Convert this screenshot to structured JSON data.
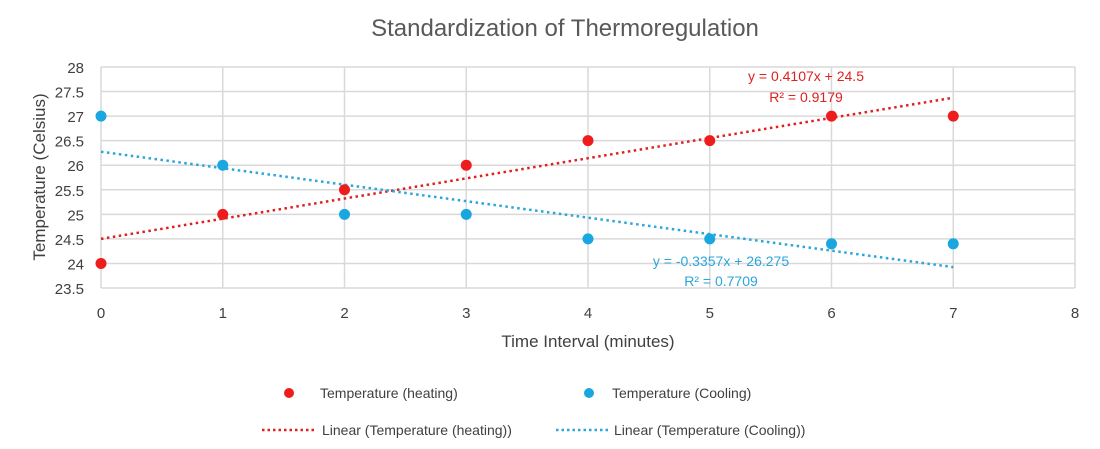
{
  "chart_data": {
    "type": "scatter",
    "title": "Standardization of Thermoregulation",
    "xlabel": "Time Interval (minutes)",
    "ylabel": "Temperature  (Celsius)",
    "xlim": [
      0,
      8
    ],
    "ylim": [
      23.5,
      28
    ],
    "xticks": [
      "0",
      "1",
      "2",
      "3",
      "4",
      "5",
      "6",
      "7",
      "8"
    ],
    "yticks": [
      "23.5",
      "24",
      "24.5",
      "25",
      "25.5",
      "26",
      "26.5",
      "27",
      "27.5",
      "28"
    ],
    "grid": true,
    "legend_position": "bottom",
    "series": [
      {
        "name": "Temperature (heating)",
        "color": "#ee1c1c",
        "x": [
          0,
          1,
          2,
          3,
          4,
          5,
          6,
          7
        ],
        "y": [
          24,
          25,
          25.5,
          26,
          26.5,
          26.5,
          27,
          27
        ]
      },
      {
        "name": "Temperature (Cooling)",
        "color": "#1aa7e0",
        "x": [
          0,
          1,
          2,
          3,
          4,
          5,
          6,
          7
        ],
        "y": [
          27,
          26,
          25,
          25,
          24.5,
          24.5,
          24.4,
          24.4
        ]
      }
    ],
    "trendlines": [
      {
        "name": "Linear (Temperature (heating))",
        "color": "#e02020",
        "slope": 0.4107,
        "intercept": 24.5,
        "equation": "y = 0.4107x + 24.5",
        "r2": "R² = 0.9179"
      },
      {
        "name": "Linear (Temperature (Cooling))",
        "color": "#2aa6dc",
        "slope": -0.3357,
        "intercept": 26.275,
        "equation": "y = -0.3357x + 26.275",
        "r2": "R² = 0.7709"
      }
    ]
  }
}
